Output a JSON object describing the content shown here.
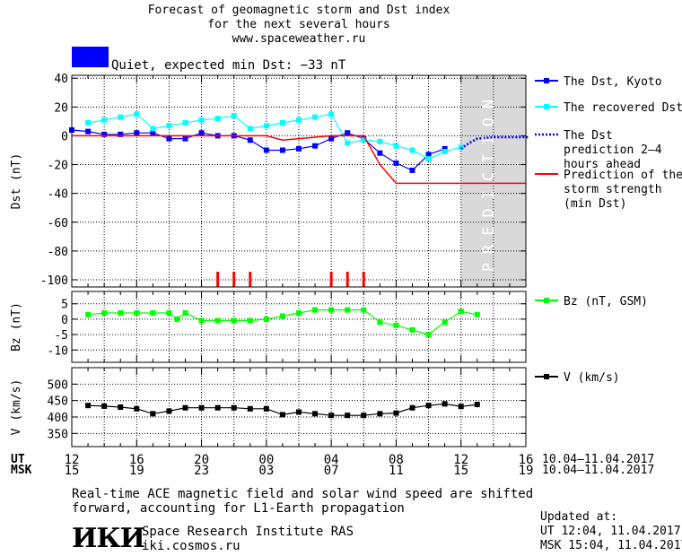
{
  "header": {
    "title_line1": "Forecast of geomagnetic storm and Dst index",
    "title_line2": "for the next several hours",
    "url": "www.spaceweather.ru",
    "status_text": "Quiet, expected min Dst: −33 nT",
    "status_color": "#0000ff"
  },
  "prediction_label": "PREDICTION",
  "time_axis": {
    "ut_label": "UT",
    "msk_label": "MSK",
    "ut_ticks": [
      "12",
      "16",
      "20",
      "00",
      "04",
      "08",
      "12",
      "16"
    ],
    "msk_ticks": [
      "15",
      "19",
      "23",
      "03",
      "07",
      "11",
      "15",
      "19"
    ],
    "date_range_ut": "10.04–11.04.2017",
    "date_range_msk": "10.04–11.04.2017"
  },
  "footer": {
    "note_line1": "Real-time ACE magnetic field and solar wind speed are shifted",
    "note_line2": "forward, accounting for L1-Earth propagation",
    "logo_text": "ИКИ",
    "institute": "Space Research Institute RAS",
    "site": "iki.cosmos.ru",
    "updated_label": "Updated at:",
    "updated_ut": "UT  12:04, 11.04.2017",
    "updated_msk": "MSK 15:04, 11.04.2017"
  },
  "chart_data": [
    {
      "type": "line",
      "ylabel": "Dst (nT)",
      "ylim": [
        -105,
        42
      ],
      "yticks": [
        40,
        20,
        0,
        -20,
        -40,
        -60,
        -80,
        -100
      ],
      "x_unit": "hours UT from 10.04 12:00",
      "xlim": [
        0,
        28
      ],
      "grid": true,
      "prediction_region_x": [
        24,
        28
      ],
      "series": [
        {
          "name": "The Dst, Kyoto",
          "color": "#0000ff",
          "style": "line-square",
          "x": [
            0,
            1,
            2,
            3,
            4,
            5,
            6,
            7,
            8,
            9,
            10,
            11,
            12,
            13,
            14,
            15,
            16,
            17,
            18,
            19,
            20,
            21,
            22,
            23,
            24
          ],
          "y": [
            4,
            3,
            1,
            1,
            2,
            2,
            -2,
            -2,
            2,
            0,
            0,
            -3,
            -10,
            -10,
            -9,
            -7,
            -2,
            2,
            -2,
            -12,
            -19,
            -24,
            -13,
            -9,
            null
          ]
        },
        {
          "name": "The recovered Dst",
          "color": "#00ffff",
          "style": "line-square",
          "x": [
            1,
            2,
            3,
            4,
            5,
            6,
            7,
            8,
            9,
            10,
            11,
            12,
            13,
            14,
            15,
            16,
            17,
            18,
            19,
            20,
            21,
            22,
            23,
            24
          ],
          "y": [
            9,
            11,
            13,
            15,
            5,
            7,
            9,
            11,
            12,
            14,
            5,
            7,
            9,
            11,
            13,
            15,
            -5,
            -3,
            -4,
            -7,
            -10,
            -16,
            -11,
            -8
          ]
        },
        {
          "name": "The Dst prediction 2–4 hours ahead",
          "color": "#0000ff",
          "style": "dotted",
          "x": [
            24,
            24.5,
            25,
            26,
            27,
            28.2
          ],
          "y": [
            -9,
            -5,
            -2,
            -1,
            -1,
            -1
          ]
        },
        {
          "name": "Prediction of the storm strength (min Dst)",
          "color": "#ff0000",
          "style": "line",
          "x": [
            0,
            12,
            13,
            15,
            16,
            18,
            19,
            20,
            28
          ],
          "y": [
            0,
            0,
            -3,
            -1,
            0,
            0,
            -20,
            -33,
            -33
          ]
        }
      ],
      "markers_x": [
        9,
        10,
        11,
        16,
        17,
        18
      ],
      "markers_color": "#ff0000",
      "legend_position": "right"
    },
    {
      "type": "line",
      "ylabel": "Bz (nT)",
      "ylim": [
        -14,
        9
      ],
      "yticks": [
        5,
        0,
        -5,
        -10
      ],
      "xlim": [
        0,
        28
      ],
      "grid": true,
      "series": [
        {
          "name": "Bz (nT, GSM)",
          "color": "#00ff00",
          "style": "line-square",
          "x": [
            1,
            2,
            3,
            4,
            5,
            6,
            6.5,
            7,
            8,
            9,
            10,
            11,
            12,
            13,
            14,
            15,
            16,
            17,
            18,
            19,
            20,
            21,
            22,
            23,
            24
          ],
          "y": [
            1.5,
            2,
            2,
            2,
            2,
            2,
            0,
            2,
            -0.5,
            -0.5,
            -0.5,
            -0.5,
            0,
            1,
            2,
            3,
            3,
            3,
            3,
            -1,
            -2,
            -3.5,
            -5,
            -1,
            2.5
          ]
        },
        {
          "name": "",
          "color": "#00ff00",
          "style": "line-square",
          "x": [
            24,
            25
          ],
          "y": [
            2.5,
            1.5
          ]
        }
      ],
      "legend_position": "right"
    },
    {
      "type": "line",
      "ylabel": "V (km/s)",
      "ylim": [
        310,
        550
      ],
      "yticks": [
        500,
        450,
        400,
        350
      ],
      "xlim": [
        0,
        28
      ],
      "grid": true,
      "series": [
        {
          "name": "V (km/s)",
          "color": "#000000",
          "style": "line-square",
          "x": [
            1,
            2,
            3,
            4,
            5,
            6,
            7,
            8,
            9,
            10,
            11,
            12,
            13,
            14,
            15,
            16,
            17,
            18,
            19,
            20,
            21,
            22,
            23,
            24,
            25
          ],
          "y": [
            435,
            433,
            430,
            425,
            410,
            418,
            428,
            428,
            428,
            428,
            425,
            425,
            407,
            415,
            410,
            405,
            405,
            405,
            410,
            412,
            428,
            435,
            440,
            432,
            438
          ]
        }
      ],
      "legend_position": "right"
    }
  ]
}
